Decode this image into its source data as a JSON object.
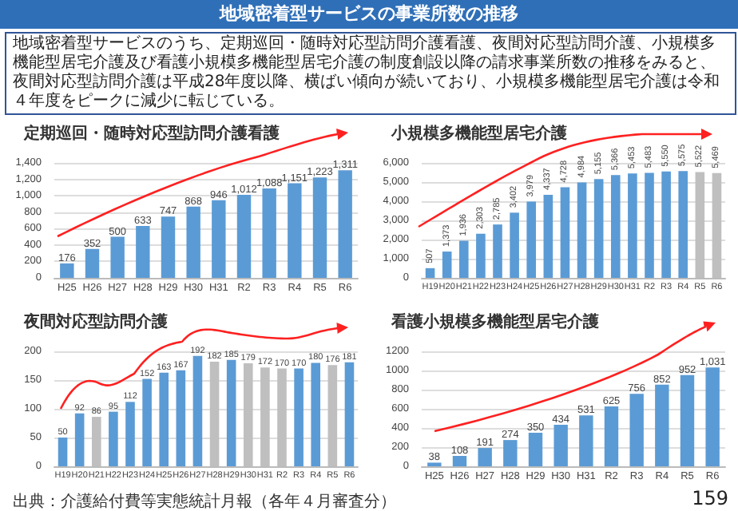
{
  "chart_data": [
    {
      "type": "bar",
      "title": "定期巡回・随時対応型訪問介護看護",
      "annotations": [
        "地域密着型サービスの事業所数の推移",
        "地域密着型サービスのうち、定期巡回・随時対応型訪問介護看護、夜間対応型訪問介護、小規模多機能型居宅介護及び看護小規模多機能型居宅介護の制度創設以降の請求事業所数の推移をみると、夜間対応型訪問介護は平成28年度以降、横ばい傾向が続いており、小規模多機能型居宅介護は令和４年度をピークに減少に転じている。"
      ],
      "categories": [
        "H25",
        "H26",
        "H27",
        "H28",
        "H29",
        "H30",
        "H31",
        "R2",
        "R3",
        "R4",
        "R5",
        "R6"
      ],
      "values": [
        176,
        352,
        500,
        633,
        747,
        868,
        946,
        1012,
        1088,
        1151,
        1223,
        1311
      ],
      "color": "#5b9bd5",
      "value_labels": [
        "176",
        "352",
        "500",
        "633",
        "747",
        "868",
        "946",
        "1,012",
        "1,088",
        "1,151",
        "1,223",
        "1,311"
      ],
      "ylim": [
        0,
        1400
      ],
      "yticks": [
        0,
        {
          "value": 200,
          "label": "200"
        },
        {
          "value": 400,
          "label": "400"
        },
        {
          "value": 600,
          "label": "600"
        },
        {
          "value": 800,
          "label": "800"
        },
        {
          "value": 1000,
          "label": "1,000"
        },
        {
          "value": 1200,
          "label": "1,200"
        },
        {
          "value": 1400,
          "label": "1,400"
        }
      ],
      "grid": "y"
    },
    {
      "type": "bar",
      "title": "小規模多機能型居宅介護",
      "categories": [
        "H19",
        "H20",
        "H21",
        "H22",
        "H23",
        "H24",
        "H25",
        "H26",
        "H27",
        "H28",
        "H29",
        "H30",
        "H31",
        "R2",
        "R3",
        "R4",
        "R5",
        "R6"
      ],
      "values": [
        507,
        1373,
        1936,
        2303,
        2785,
        3402,
        3979,
        4337,
        4728,
        4984,
        5155,
        5366,
        5453,
        5483,
        5550,
        5575,
        5522,
        5469
      ],
      "colors": [
        "#5b9bd5",
        "#5b9bd5",
        "#5b9bd5",
        "#5b9bd5",
        "#5b9bd5",
        "#5b9bd5",
        "#5b9bd5",
        "#5b9bd5",
        "#5b9bd5",
        "#5b9bd5",
        "#5b9bd5",
        "#5b9bd5",
        "#5b9bd5",
        "#5b9bd5",
        "#5b9bd5",
        "#5b9bd5",
        "#bfbfbf",
        "#bfbfbf"
      ],
      "value_labels": [
        "507",
        "1,373",
        "1,936",
        "2,303",
        "2,785",
        "3,402",
        "3,979",
        "4,337",
        "4,728",
        "4,984",
        "5,155",
        "5,366",
        "5,453",
        "5,483",
        "5,550",
        "5,575",
        "5,522",
        "5,469"
      ],
      "ylim": [
        0,
        6000
      ],
      "yticks": [
        0,
        {
          "value": 1000,
          "label": "1,000"
        },
        {
          "value": 2000,
          "label": "2,000"
        },
        {
          "value": 3000,
          "label": "3,000"
        },
        {
          "value": 4000,
          "label": "4,000"
        },
        {
          "value": 5000,
          "label": "5,000"
        },
        {
          "value": 6000,
          "label": "6,000"
        }
      ],
      "grid": "y"
    },
    {
      "type": "bar",
      "title": "夜間対応型訪問介護",
      "annotations": [
        "出典：介護給付費等実態統計月報（各年４月審査分）"
      ],
      "categories": [
        "H19",
        "H20",
        "H21",
        "H22",
        "H23",
        "H24",
        "H25",
        "H26",
        "H27",
        "H28",
        "H29",
        "H30",
        "H31",
        "R2",
        "R3",
        "R4",
        "R5",
        "R6"
      ],
      "values": [
        50,
        92,
        86,
        95,
        112,
        152,
        163,
        167,
        192,
        182,
        185,
        179,
        172,
        170,
        170,
        180,
        176,
        181
      ],
      "colors": [
        "#5b9bd5",
        "#5b9bd5",
        "#bfbfbf",
        "#5b9bd5",
        "#5b9bd5",
        "#5b9bd5",
        "#5b9bd5",
        "#5b9bd5",
        "#5b9bd5",
        "#bfbfbf",
        "#5b9bd5",
        "#bfbfbf",
        "#bfbfbf",
        "#bfbfbf",
        "#5b9bd5",
        "#5b9bd5",
        "#bfbfbf",
        "#5b9bd5"
      ],
      "value_labels": [
        "50",
        "92",
        "86",
        "95",
        "112",
        "152",
        "163",
        "167",
        "192",
        "182",
        "185",
        "179",
        "172",
        "170",
        "170",
        "180",
        "176",
        "181"
      ],
      "ylim": [
        0,
        200
      ],
      "yticks": [
        0,
        50,
        100,
        150,
        200
      ],
      "grid": "y"
    },
    {
      "type": "bar",
      "title": "看護小規模多機能型居宅介護",
      "annotations": [
        "159"
      ],
      "categories": [
        "H25",
        "H26",
        "H27",
        "H28",
        "H29",
        "H30",
        "H31",
        "R2",
        "R3",
        "R4",
        "R5",
        "R6"
      ],
      "values": [
        38,
        108,
        191,
        274,
        350,
        434,
        531,
        625,
        756,
        852,
        952,
        1031
      ],
      "color": "#5b9bd5",
      "value_labels": [
        "38",
        "108",
        "191",
        "274",
        "350",
        "434",
        "531",
        "625",
        "756",
        "852",
        "952",
        "1,031"
      ],
      "ylim": [
        0,
        1200
      ],
      "yticks": [
        0,
        200,
        400,
        600,
        800,
        1000,
        1200
      ],
      "grid": "y"
    }
  ]
}
